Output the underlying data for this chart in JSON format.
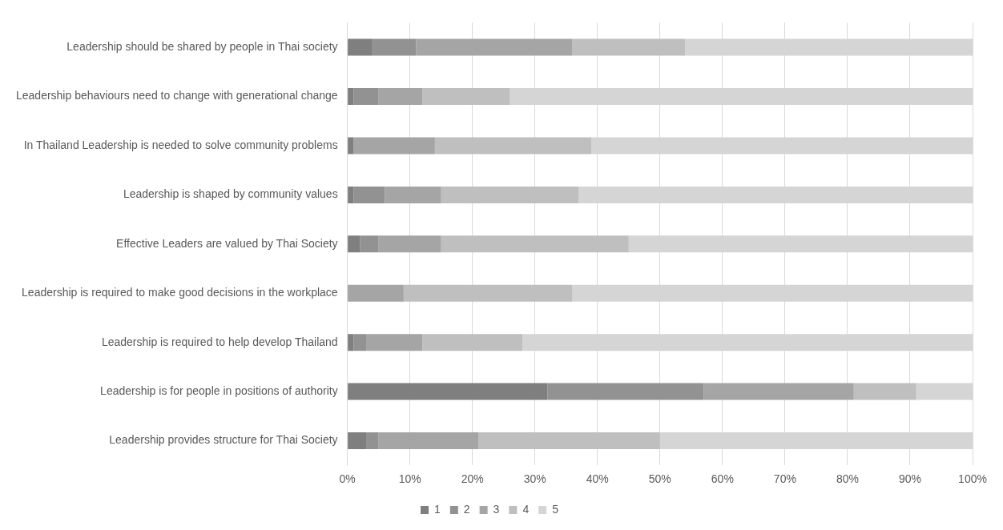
{
  "chart_data": {
    "type": "bar",
    "orientation": "horizontal",
    "stacked": true,
    "categories": [
      "Leadership should be shared by people in Thai society",
      "Leadership behaviours need to change with generational change",
      "In Thailand Leadership is needed to solve community problems",
      "Leadership is shaped by community values",
      "Effective Leaders are valued by Thai Society",
      "Leadership is required to make good decisions in the workplace",
      "Leadership is required to help develop Thailand",
      "Leadership is for people in positions of authority",
      "Leadership provides structure for Thai Society"
    ],
    "series": [
      {
        "name": "1",
        "color": "#7f7f7f",
        "values": [
          4,
          1,
          1,
          1,
          2,
          0,
          1,
          32,
          3
        ]
      },
      {
        "name": "2",
        "color": "#929292",
        "values": [
          7,
          4,
          0,
          5,
          3,
          0,
          2,
          25,
          2
        ]
      },
      {
        "name": "3",
        "color": "#a5a5a5",
        "values": [
          25,
          7,
          13,
          9,
          10,
          9,
          9,
          24,
          16
        ]
      },
      {
        "name": "4",
        "color": "#bfbfbf",
        "values": [
          18,
          14,
          25,
          22,
          30,
          27,
          16,
          10,
          29
        ]
      },
      {
        "name": "5",
        "color": "#d5d5d5",
        "values": [
          46,
          74,
          61,
          63,
          55,
          64,
          72,
          9,
          50
        ]
      }
    ],
    "xlim": [
      0,
      100
    ],
    "xticks": [
      {
        "value": 0,
        "label": "0%"
      },
      {
        "value": 10,
        "label": "10%"
      },
      {
        "value": 20,
        "label": "20%"
      },
      {
        "value": 30,
        "label": "30%"
      },
      {
        "value": 40,
        "label": "40%"
      },
      {
        "value": 50,
        "label": "50%"
      },
      {
        "value": 60,
        "label": "60%"
      },
      {
        "value": 70,
        "label": "70%"
      },
      {
        "value": 80,
        "label": "80%"
      },
      {
        "value": 90,
        "label": "90%"
      },
      {
        "value": 100,
        "label": "100%"
      }
    ],
    "grid": "x",
    "legend": "bottom"
  }
}
